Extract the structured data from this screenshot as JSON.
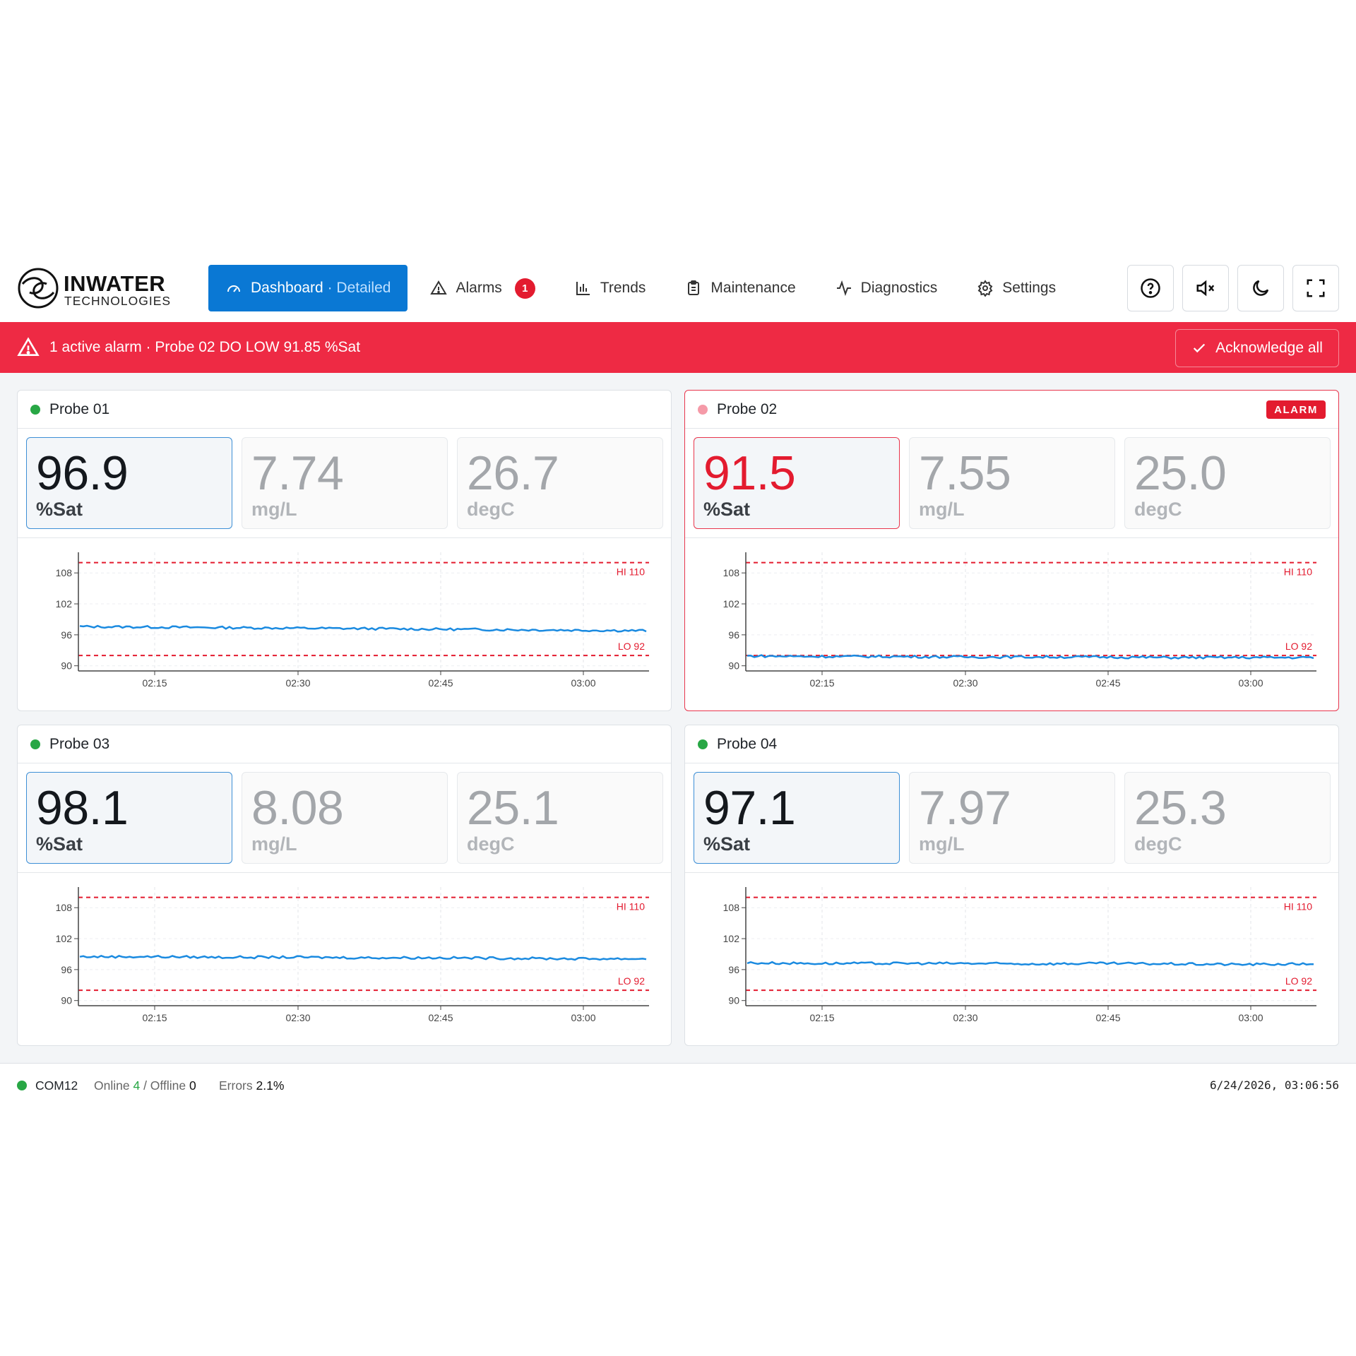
{
  "brand": {
    "name": "INWATER",
    "sub": "TECHNOLOGIES"
  },
  "nav": {
    "dashboard": "Dashboard",
    "dashboard_sep": " · ",
    "dashboard_mode": "Detailed",
    "alarms": "Alarms",
    "alarms_count": "1",
    "trends": "Trends",
    "maintenance": "Maintenance",
    "diagnostics": "Diagnostics",
    "settings": "Settings"
  },
  "tools": [
    "help-icon",
    "mute-icon",
    "dark-mode-icon",
    "fullscreen-icon"
  ],
  "banner": {
    "text": "1 active alarm · Probe 02 DO LOW 91.85 %Sat",
    "ack_label": "Acknowledge all",
    "color": "#ee2a44"
  },
  "colors": {
    "accent": "#0a78d4",
    "alarm": "#e31b2f",
    "online": "#28a745",
    "series": "#1a8ae0",
    "limit": "#e31b2f"
  },
  "probes": [
    {
      "name": "Probe 01",
      "status": "online",
      "alarm_label": "",
      "sat": "96.9",
      "sat_unit": "%Sat",
      "mgl": "7.74",
      "mgl_unit": "mg/L",
      "temp": "26.7",
      "temp_unit": "degC",
      "level": 97.0
    },
    {
      "name": "Probe 02",
      "status": "alarm",
      "alarm_label": "ALARM",
      "sat": "91.5",
      "sat_unit": "%Sat",
      "mgl": "7.55",
      "mgl_unit": "mg/L",
      "temp": "25.0",
      "temp_unit": "degC",
      "level": 91.7
    },
    {
      "name": "Probe 03",
      "status": "online",
      "alarm_label": "",
      "sat": "98.1",
      "sat_unit": "%Sat",
      "mgl": "8.08",
      "mgl_unit": "mg/L",
      "temp": "25.1",
      "temp_unit": "degC",
      "level": 98.2
    },
    {
      "name": "Probe 04",
      "status": "online",
      "alarm_label": "",
      "sat": "97.1",
      "sat_unit": "%Sat",
      "mgl": "7.97",
      "mgl_unit": "mg/L",
      "temp": "25.3",
      "temp_unit": "degC",
      "level": 97.1
    }
  ],
  "chart_data": [
    {
      "type": "line",
      "title": "",
      "xlabel": "",
      "ylabel": "",
      "x_ticks": [
        "02:15",
        "02:30",
        "02:45",
        "03:00"
      ],
      "y_ticks": [
        90,
        96,
        102,
        108
      ],
      "ylim": [
        89,
        112
      ],
      "hi_label": "HI 110",
      "hi": 110,
      "lo_label": "LO 92",
      "lo": 92,
      "series": [
        {
          "values": [
            97.6,
            97.5,
            97.4,
            97.3,
            97.2,
            97.1,
            97.0,
            96.9,
            96.8
          ]
        }
      ]
    },
    {
      "type": "line",
      "title": "",
      "xlabel": "",
      "ylabel": "",
      "x_ticks": [
        "02:15",
        "02:30",
        "02:45",
        "03:00"
      ],
      "y_ticks": [
        90,
        96,
        102,
        108
      ],
      "ylim": [
        89,
        112
      ],
      "hi_label": "HI 110",
      "hi": 110,
      "lo_label": "LO 92",
      "lo": 92,
      "series": [
        {
          "values": [
            91.9,
            91.8,
            91.8,
            91.7,
            91.7,
            91.7,
            91.6,
            91.6,
            91.6
          ]
        }
      ]
    },
    {
      "type": "line",
      "title": "",
      "xlabel": "",
      "ylabel": "",
      "x_ticks": [
        "02:15",
        "02:30",
        "02:45",
        "03:00"
      ],
      "y_ticks": [
        90,
        96,
        102,
        108
      ],
      "ylim": [
        89,
        112
      ],
      "hi_label": "HI 110",
      "hi": 110,
      "lo_label": "LO 92",
      "lo": 92,
      "series": [
        {
          "values": [
            98.5,
            98.5,
            98.4,
            98.4,
            98.3,
            98.3,
            98.2,
            98.1,
            98.1
          ]
        }
      ]
    },
    {
      "type": "line",
      "title": "",
      "xlabel": "",
      "ylabel": "",
      "x_ticks": [
        "02:15",
        "02:30",
        "02:45",
        "03:00"
      ],
      "y_ticks": [
        90,
        96,
        102,
        108
      ],
      "ylim": [
        89,
        112
      ],
      "hi_label": "HI 110",
      "hi": 110,
      "lo_label": "LO 92",
      "lo": 92,
      "series": [
        {
          "values": [
            97.3,
            97.2,
            97.2,
            97.2,
            97.1,
            97.2,
            97.1,
            97.0,
            97.1
          ]
        }
      ]
    }
  ],
  "status": {
    "port": "COM12",
    "online_label": "Online",
    "online": "4",
    "sep": " / ",
    "offline_label": "Offline",
    "offline": "0",
    "errors_label": "Errors",
    "errors": "2.1%",
    "datetime": "6/24/2026, 03:06:56"
  }
}
